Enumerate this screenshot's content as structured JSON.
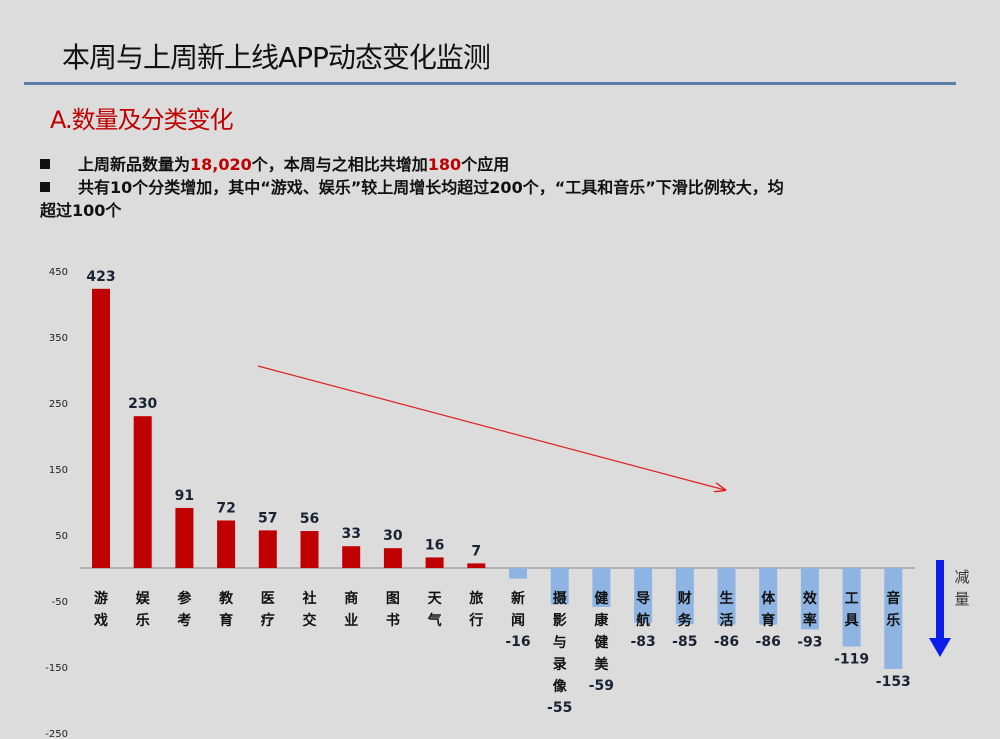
{
  "slide": {
    "title": "本周与上周新上线APP动态变化监测",
    "subtitle": "A.数量及分类变化",
    "bullets": [
      {
        "pre": "上周新品数量为",
        "hl1": "18,020",
        "mid": "个，本周与之相比共增加",
        "hl2": "180",
        "post": "个应用"
      },
      {
        "line1": "共有10个分类增加，其中“游戏、娱乐”较上周增长均超过200个，“工具和音乐”下滑比例较大，均",
        "line2": "超过100个"
      }
    ],
    "decrease_label": "减量"
  },
  "chart_data": {
    "type": "bar",
    "title": "",
    "xlabel": "",
    "ylabel": "",
    "ylim": [
      -250,
      450
    ],
    "yticks": [
      450,
      350,
      250,
      150,
      50,
      -50,
      -150,
      -250
    ],
    "grid": false,
    "categories": [
      "游戏",
      "娱乐",
      "参考",
      "教育",
      "医疗",
      "社交",
      "商业",
      "图书",
      "天气",
      "旅行",
      "新闻",
      "摄影与录像",
      "健康健美",
      "导航",
      "财务",
      "生活",
      "体育",
      "效率",
      "工具",
      "音乐"
    ],
    "values": [
      423,
      230,
      91,
      72,
      57,
      56,
      33,
      30,
      16,
      7,
      -16,
      -55,
      -59,
      -83,
      -85,
      -86,
      -86,
      -93,
      -119,
      -153
    ],
    "colors": {
      "positive": "#c00000",
      "negative": "#8db4e2",
      "trend_arrow": "#e02020",
      "decrease_arrow": "#0a1ee8"
    }
  }
}
